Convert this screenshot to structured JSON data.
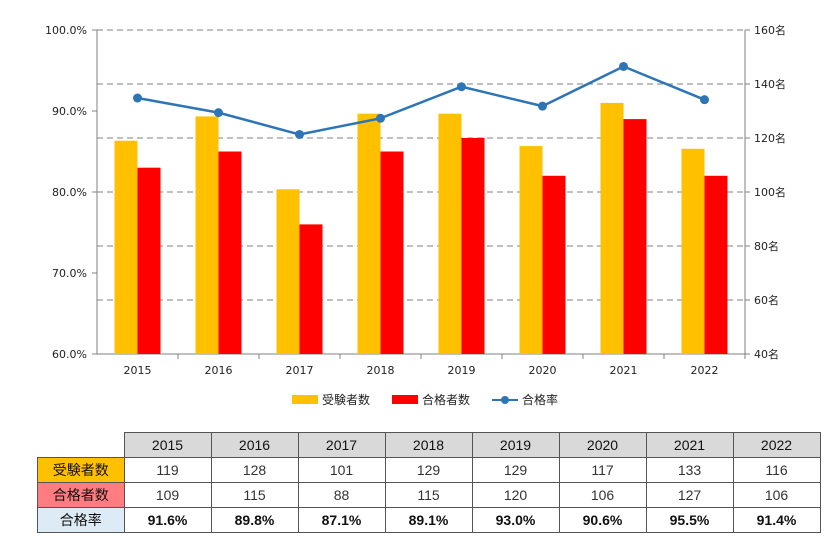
{
  "chart_data": {
    "type": "bar+line",
    "categories": [
      "2015",
      "2016",
      "2017",
      "2018",
      "2019",
      "2020",
      "2021",
      "2022"
    ],
    "series": [
      {
        "name": "受験者数",
        "type": "bar",
        "axis": "right",
        "color": "#FFC000",
        "values": [
          119,
          128,
          101,
          129,
          129,
          117,
          133,
          116
        ]
      },
      {
        "name": "合格者数",
        "type": "bar",
        "axis": "right",
        "color": "#FF0000",
        "values": [
          109,
          115,
          88,
          115,
          120,
          106,
          127,
          106
        ]
      },
      {
        "name": "合格率",
        "type": "line",
        "axis": "left",
        "color": "#2E75B6",
        "values": [
          91.6,
          89.8,
          87.1,
          89.1,
          93.0,
          90.6,
          95.5,
          91.4
        ]
      }
    ],
    "left_axis": {
      "min": 60,
      "max": 100,
      "ticks": [
        "60.0%",
        "70.0%",
        "80.0%",
        "90.0%",
        "100.0%"
      ]
    },
    "right_axis": {
      "min": 40,
      "max": 160,
      "ticks": [
        "40名",
        "60名",
        "80名",
        "100名",
        "120名",
        "140名",
        "160名"
      ]
    },
    "grid": "dashed-horizontal",
    "legend_position": "bottom"
  },
  "table": {
    "rows": [
      {
        "label": "受験者数",
        "color": "#FFC000",
        "values": [
          "119",
          "128",
          "101",
          "129",
          "129",
          "117",
          "133",
          "116"
        ]
      },
      {
        "label": "合格者数",
        "color": "#FF7C80",
        "values": [
          "109",
          "115",
          "88",
          "115",
          "120",
          "106",
          "127",
          "106"
        ]
      },
      {
        "label": "合格率",
        "color": "#DDEBF7",
        "values": [
          "91.6%",
          "89.8%",
          "87.1%",
          "89.1%",
          "93.0%",
          "90.6%",
          "95.5%",
          "91.4%"
        ]
      }
    ]
  }
}
